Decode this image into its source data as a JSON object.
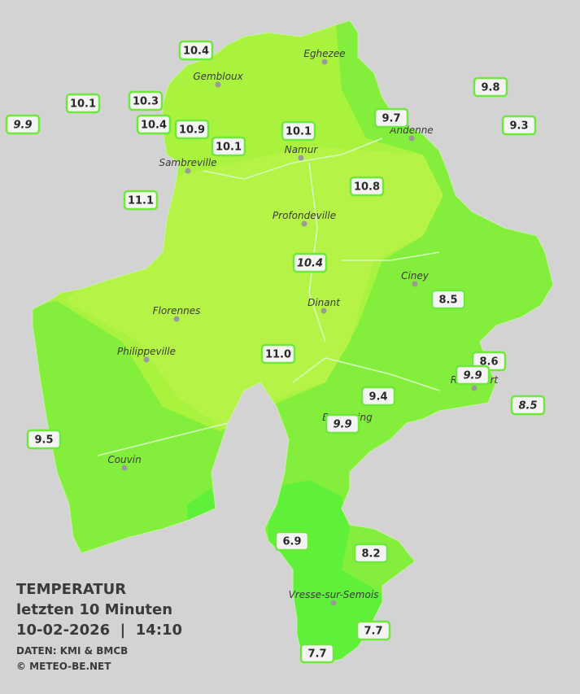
{
  "legend": {
    "title": "TEMPERATUR",
    "period": "letzten 10 Minuten",
    "datetime": "10-02-2026  |  14:10",
    "source": "DATEN: KMI & BMCB",
    "copyright": "© METEO-BE.NET"
  },
  "cities": [
    "Eghezee",
    "Gembloux",
    "Andenne",
    "Namur",
    "Sambreville",
    "Profondeville",
    "Ciney",
    "Dinant",
    "Florennes",
    "Philippeville",
    "Rochefort",
    "Beauraing",
    "Couvin",
    "Vresse-sur-Semois"
  ],
  "stations": [
    {
      "temp": "10.4",
      "italic": false
    },
    {
      "temp": "10.1",
      "italic": false
    },
    {
      "temp": "10.3",
      "italic": false
    },
    {
      "temp": "10.4",
      "italic": false
    },
    {
      "temp": "10.9",
      "italic": false
    },
    {
      "temp": "10.1",
      "italic": false
    },
    {
      "temp": "10.1",
      "italic": false
    },
    {
      "temp": "9.9",
      "italic": true
    },
    {
      "temp": "9.7",
      "italic": false
    },
    {
      "temp": "9.8",
      "italic": false
    },
    {
      "temp": "9.3",
      "italic": false
    },
    {
      "temp": "11.1",
      "italic": false
    },
    {
      "temp": "10.8",
      "italic": false
    },
    {
      "temp": "10.4",
      "italic": true
    },
    {
      "temp": "8.5",
      "italic": false
    },
    {
      "temp": "11.0",
      "italic": false
    },
    {
      "temp": "8.6",
      "italic": false
    },
    {
      "temp": "9.9",
      "italic": true
    },
    {
      "temp": "9.4",
      "italic": false
    },
    {
      "temp": "9.9",
      "italic": true
    },
    {
      "temp": "8.5",
      "italic": true
    },
    {
      "temp": "9.5",
      "italic": false
    },
    {
      "temp": "6.9",
      "italic": false
    },
    {
      "temp": "8.2",
      "italic": false
    },
    {
      "temp": "7.7",
      "italic": false
    },
    {
      "temp": "7.7",
      "italic": false
    }
  ]
}
